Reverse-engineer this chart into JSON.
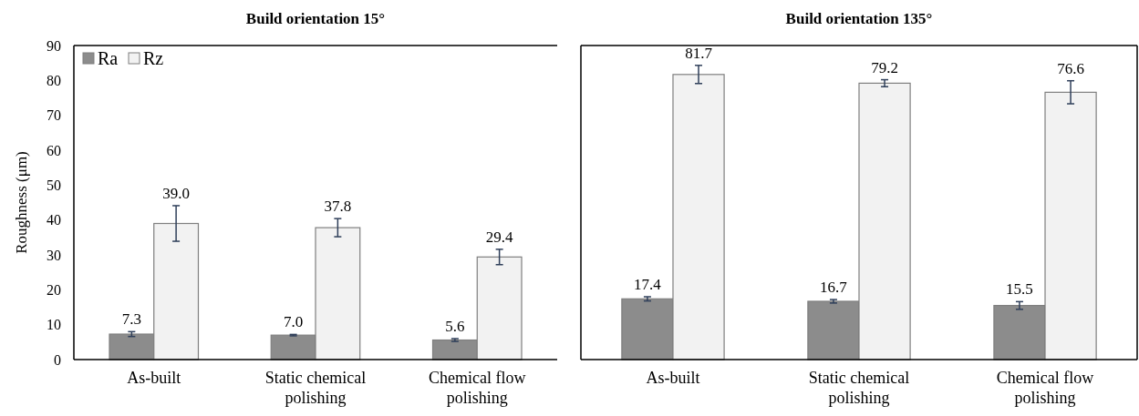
{
  "chart_data": [
    {
      "type": "bar",
      "title": "Build orientation 15°",
      "ylabel": "Roughness (μm)",
      "categories": [
        "As-built",
        "Static chemical polishing",
        "Chemical flow polishing"
      ],
      "series": [
        {
          "name": "Ra",
          "color": "#8c8c8c",
          "values": [
            7.3,
            7.0,
            5.6
          ],
          "value_labels": [
            "7.3",
            "7.0",
            "5.6"
          ],
          "errors": [
            0.7,
            0.2,
            0.4
          ]
        },
        {
          "name": "Rz",
          "color": "#f2f2f2",
          "values": [
            39.0,
            37.8,
            29.4
          ],
          "value_labels": [
            "39.0",
            "37.8",
            "29.4"
          ],
          "errors": [
            5.1,
            2.6,
            2.2
          ]
        }
      ],
      "ylim": [
        0,
        90
      ],
      "yticks": [
        0,
        10,
        20,
        30,
        40,
        50,
        60,
        70,
        80,
        90
      ],
      "legend": "top left"
    },
    {
      "type": "bar",
      "title": "Build orientation 135°",
      "categories": [
        "As-built",
        "Static chemical polishing",
        "Chemical flow polishing"
      ],
      "series": [
        {
          "color": "#8c8c8c",
          "values": [
            17.4,
            16.7,
            15.5
          ],
          "value_labels": [
            "17.4",
            "16.7",
            "15.5"
          ],
          "errors": [
            0.6,
            0.5,
            1.1
          ]
        },
        {
          "color": "#f2f2f2",
          "values": [
            81.7,
            79.2,
            76.6
          ],
          "value_labels": [
            "81.7",
            "79.2",
            "76.6"
          ],
          "errors": [
            2.6,
            1.0,
            3.3
          ]
        }
      ],
      "ylim": [
        0,
        90
      ],
      "tick_labels": "x"
    }
  ]
}
